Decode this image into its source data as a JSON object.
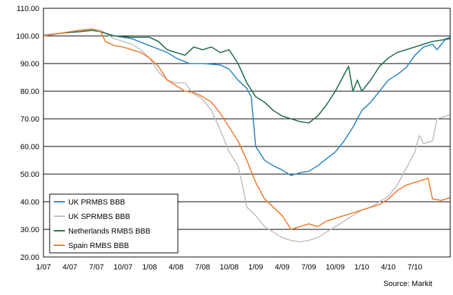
{
  "chart_data": {
    "type": "line",
    "title": "",
    "xlabel": "",
    "ylabel": "",
    "ylim": [
      20,
      110
    ],
    "yticks": [
      "20.00",
      "30.00",
      "40.00",
      "50.00",
      "60.00",
      "70.00",
      "80.00",
      "90.00",
      "100.00",
      "110.00"
    ],
    "xticks": [
      "1/07",
      "4/07",
      "7/07",
      "10/07",
      "1/08",
      "4/08",
      "7/08",
      "10/08",
      "1/09",
      "4/09",
      "7/09",
      "10/09",
      "1/10",
      "4/10",
      "7/10"
    ],
    "grid": "horizontal",
    "legend_position": "bottom-left",
    "source": "Source: Markit",
    "series": [
      {
        "name": "UK PRMBS BBB",
        "color": "#2b86c9",
        "points": [
          [
            0,
            100
          ],
          [
            2,
            101
          ],
          [
            4,
            102
          ],
          [
            5.5,
            102.5
          ],
          [
            6.5,
            101.5
          ],
          [
            8,
            100
          ],
          [
            10,
            99
          ],
          [
            12,
            96.5
          ],
          [
            14,
            94
          ],
          [
            15,
            92
          ],
          [
            16.5,
            90
          ],
          [
            18,
            90
          ],
          [
            20,
            89.5
          ],
          [
            21,
            88
          ],
          [
            22,
            84
          ],
          [
            23,
            81
          ],
          [
            23.5,
            78
          ],
          [
            24,
            60
          ],
          [
            25,
            55
          ],
          [
            26,
            53
          ],
          [
            27,
            51.5
          ],
          [
            28,
            49.5
          ],
          [
            29,
            50.5
          ],
          [
            30,
            51
          ],
          [
            31,
            53
          ],
          [
            32,
            55.5
          ],
          [
            33,
            58
          ],
          [
            34,
            62
          ],
          [
            35,
            67
          ],
          [
            36,
            73
          ],
          [
            37,
            76
          ],
          [
            38,
            80
          ],
          [
            39,
            84
          ],
          [
            40,
            86
          ],
          [
            41,
            88.5
          ],
          [
            42,
            93
          ],
          [
            43,
            96
          ],
          [
            44,
            97
          ],
          [
            44.5,
            95
          ],
          [
            45,
            97
          ],
          [
            45.5,
            99
          ],
          [
            46,
            99.5
          ]
        ]
      },
      {
        "name": "UK SPRMBS BBB",
        "color": "#c0c0c0",
        "points": [
          [
            0,
            100.5
          ],
          [
            2,
            101
          ],
          [
            4,
            102
          ],
          [
            5.5,
            102.5
          ],
          [
            6.5,
            102
          ],
          [
            8,
            99
          ],
          [
            10,
            97
          ],
          [
            11,
            95
          ],
          [
            12,
            92
          ],
          [
            13,
            87
          ],
          [
            14,
            84
          ],
          [
            15,
            83
          ],
          [
            16,
            83
          ],
          [
            17,
            79
          ],
          [
            18,
            77
          ],
          [
            19,
            73
          ],
          [
            20,
            66
          ],
          [
            21,
            58
          ],
          [
            22,
            53
          ],
          [
            22.5,
            46
          ],
          [
            23,
            38
          ],
          [
            24,
            35
          ],
          [
            25,
            31
          ],
          [
            26,
            29
          ],
          [
            27,
            27
          ],
          [
            28,
            26
          ],
          [
            29,
            25.5
          ],
          [
            30,
            26
          ],
          [
            31,
            27
          ],
          [
            32,
            29
          ],
          [
            33,
            31
          ],
          [
            34,
            33
          ],
          [
            35,
            35
          ],
          [
            36,
            37
          ],
          [
            37,
            38
          ],
          [
            38,
            40
          ],
          [
            39,
            42
          ],
          [
            40,
            46
          ],
          [
            41,
            52
          ],
          [
            42,
            58
          ],
          [
            42.5,
            64
          ],
          [
            43,
            61
          ],
          [
            44,
            62
          ],
          [
            44.5,
            70
          ],
          [
            45,
            70.5
          ],
          [
            46,
            71.5
          ]
        ]
      },
      {
        "name": "Netherlands RMBS BBB",
        "color": "#1f6b44",
        "points": [
          [
            0,
            100
          ],
          [
            2,
            101
          ],
          [
            4,
            101.5
          ],
          [
            5.5,
            102
          ],
          [
            6.5,
            101.5
          ],
          [
            8,
            100
          ],
          [
            10,
            99.5
          ],
          [
            12,
            99.5
          ],
          [
            13,
            98
          ],
          [
            14,
            95
          ],
          [
            15,
            94
          ],
          [
            16,
            93
          ],
          [
            17,
            96
          ],
          [
            18,
            95
          ],
          [
            19,
            96
          ],
          [
            20,
            94
          ],
          [
            21,
            95
          ],
          [
            22,
            90
          ],
          [
            23,
            83
          ],
          [
            24,
            78
          ],
          [
            25,
            76
          ],
          [
            26,
            73
          ],
          [
            27,
            71
          ],
          [
            28,
            70
          ],
          [
            29,
            69
          ],
          [
            30,
            68.5
          ],
          [
            31,
            71
          ],
          [
            32,
            75
          ],
          [
            33,
            80
          ],
          [
            34,
            86
          ],
          [
            34.5,
            89
          ],
          [
            35,
            80
          ],
          [
            35.5,
            84
          ],
          [
            36,
            80
          ],
          [
            37,
            84
          ],
          [
            38,
            89
          ],
          [
            39,
            92
          ],
          [
            40,
            94
          ],
          [
            41,
            95
          ],
          [
            42,
            96
          ],
          [
            43,
            97
          ],
          [
            44,
            98
          ],
          [
            45,
            98.5
          ],
          [
            46,
            99
          ]
        ]
      },
      {
        "name": "Spain RMBS BBB",
        "color": "#ef7a2b",
        "points": [
          [
            0,
            100
          ],
          [
            2,
            101
          ],
          [
            4,
            102
          ],
          [
            5.5,
            102.5
          ],
          [
            6.5,
            101.5
          ],
          [
            7,
            98
          ],
          [
            8,
            96.5
          ],
          [
            9,
            96
          ],
          [
            10,
            95
          ],
          [
            11,
            94
          ],
          [
            12,
            92
          ],
          [
            13,
            89
          ],
          [
            14,
            84
          ],
          [
            15,
            82
          ],
          [
            16,
            80
          ],
          [
            17,
            79.5
          ],
          [
            18,
            78
          ],
          [
            19,
            76
          ],
          [
            20,
            72
          ],
          [
            21,
            67
          ],
          [
            22,
            62
          ],
          [
            23,
            55
          ],
          [
            24,
            47
          ],
          [
            25,
            41
          ],
          [
            26,
            38
          ],
          [
            27,
            35
          ],
          [
            28,
            30
          ],
          [
            29,
            31
          ],
          [
            30,
            32
          ],
          [
            31,
            31
          ],
          [
            32,
            33
          ],
          [
            33,
            34
          ],
          [
            34,
            35
          ],
          [
            35,
            36
          ],
          [
            36,
            37
          ],
          [
            37,
            38
          ],
          [
            38,
            39
          ],
          [
            39,
            41
          ],
          [
            40,
            44
          ],
          [
            41,
            46
          ],
          [
            42,
            47
          ],
          [
            43,
            48
          ],
          [
            43.5,
            48.5
          ],
          [
            44,
            41
          ],
          [
            45,
            40.5
          ],
          [
            46,
            41.5
          ]
        ]
      }
    ]
  }
}
